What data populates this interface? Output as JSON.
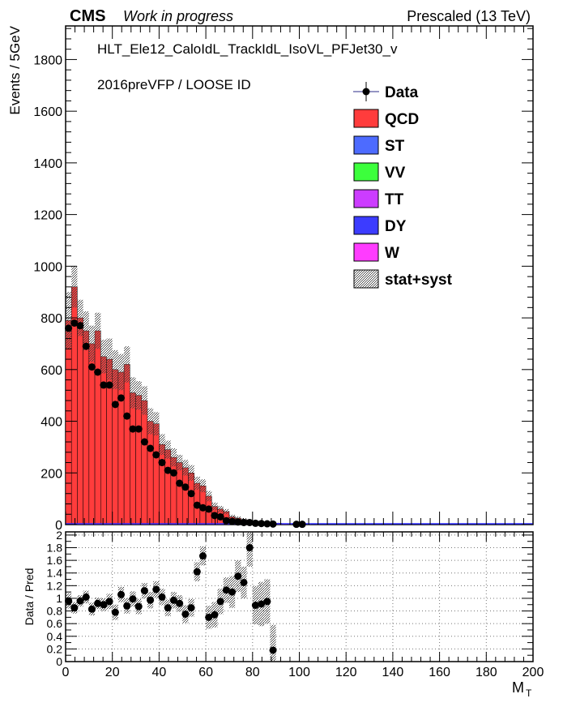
{
  "header": {
    "experiment": "CMS",
    "status": "Work in progress",
    "energy": "Prescaled (13 TeV)"
  },
  "annotations": {
    "trigger": "HLT_Ele12_CaloIdL_TrackIdL_IsoVL_PFJet30_v",
    "selection": "2016preVFP / LOOSE ID"
  },
  "legend": [
    {
      "label": "Data",
      "kind": "marker",
      "color": "#000000"
    },
    {
      "label": "QCD",
      "kind": "box",
      "color": "#ff3c3c"
    },
    {
      "label": "ST",
      "kind": "box",
      "color": "#4d6bff"
    },
    {
      "label": "VV",
      "kind": "box",
      "color": "#3cff3c"
    },
    {
      "label": "TT",
      "kind": "box",
      "color": "#cc3cff"
    },
    {
      "label": "DY",
      "kind": "box",
      "color": "#3c3cff"
    },
    {
      "label": "W",
      "kind": "box",
      "color": "#ff3cff"
    },
    {
      "label": "stat+syst",
      "kind": "hatch",
      "color": "#555555"
    }
  ],
  "chart_data": [
    {
      "type": "bar",
      "panel": "main",
      "ylabel": "Events / 5GeV",
      "xlim": [
        0,
        200
      ],
      "ylim": [
        0,
        1930
      ],
      "yticks": [
        0,
        200,
        400,
        600,
        800,
        1000,
        1200,
        1400,
        1600,
        1800
      ],
      "bin_width": 2.5,
      "bin_edges_start": 0,
      "series": [
        {
          "name": "QCD",
          "color": "#ff3c3c",
          "values": [
            790,
            920,
            800,
            750,
            700,
            750,
            650,
            640,
            600,
            590,
            620,
            510,
            500,
            480,
            400,
            390,
            310,
            290,
            260,
            240,
            220,
            200,
            160,
            150,
            110,
            70,
            60,
            50,
            30,
            25,
            20,
            15,
            12,
            10,
            8,
            6,
            5,
            3,
            2,
            1,
            1,
            1
          ]
        }
      ],
      "uncertainty": [
        110,
        80,
        70,
        75,
        70,
        70,
        65,
        80,
        75,
        70,
        70,
        60,
        55,
        55,
        50,
        45,
        40,
        35,
        35,
        30,
        30,
        30,
        25,
        25,
        20,
        15,
        12,
        10,
        8,
        6,
        5,
        4,
        3,
        3,
        2,
        2,
        2,
        1,
        1,
        1,
        1,
        1
      ],
      "data": {
        "name": "Data",
        "x": [
          1.25,
          3.75,
          6.25,
          8.75,
          11.25,
          13.75,
          16.25,
          18.75,
          21.25,
          23.75,
          26.25,
          28.75,
          31.25,
          33.75,
          36.25,
          38.75,
          41.25,
          43.75,
          46.25,
          48.75,
          51.25,
          53.75,
          56.25,
          58.75,
          61.25,
          63.75,
          66.25,
          68.75,
          71.25,
          73.75,
          76.25,
          78.75,
          81.25,
          83.75,
          86.25,
          88.75,
          98.75,
          101.25
        ],
        "y": [
          760,
          780,
          770,
          690,
          610,
          590,
          540,
          540,
          465,
          490,
          420,
          370,
          370,
          320,
          295,
          270,
          240,
          210,
          200,
          160,
          145,
          120,
          75,
          65,
          60,
          35,
          30,
          15,
          12,
          10,
          8,
          8,
          5,
          4,
          3,
          2,
          1,
          1
        ]
      }
    },
    {
      "type": "scatter",
      "panel": "ratio",
      "ylabel": "Data / Pred",
      "xlabel": "M",
      "xlabel_sub": "T",
      "xlim": [
        0,
        200
      ],
      "ylim": [
        0,
        2.05
      ],
      "yticks": [
        0,
        0.2,
        0.4,
        0.6,
        0.8,
        1,
        1.2,
        1.4,
        1.6,
        1.8,
        2
      ],
      "xticks": [
        0,
        20,
        40,
        60,
        80,
        100,
        120,
        140,
        160,
        180,
        200
      ],
      "uncertainty": [
        0.12,
        0.09,
        0.09,
        0.1,
        0.1,
        0.09,
        0.1,
        0.12,
        0.12,
        0.12,
        0.12,
        0.12,
        0.12,
        0.12,
        0.13,
        0.13,
        0.13,
        0.13,
        0.13,
        0.13,
        0.14,
        0.14,
        0.15,
        0.15,
        0.18,
        0.2,
        0.2,
        0.2,
        0.25,
        0.25,
        0.25,
        0.3,
        0.3,
        0.35,
        0.35,
        0.4
      ],
      "points": {
        "x": [
          1.25,
          3.75,
          6.25,
          8.75,
          11.25,
          13.75,
          16.25,
          18.75,
          21.25,
          23.75,
          26.25,
          28.75,
          31.25,
          33.75,
          36.25,
          38.75,
          41.25,
          43.75,
          46.25,
          48.75,
          51.25,
          53.75,
          56.25,
          58.75,
          61.25,
          63.75,
          66.25,
          68.75,
          71.25,
          73.75,
          76.25,
          78.75,
          81.25,
          83.75,
          86.25,
          88.75
        ],
        "y": [
          0.96,
          0.85,
          0.96,
          1.02,
          0.83,
          0.92,
          0.9,
          0.95,
          0.78,
          1.06,
          0.88,
          0.99,
          0.87,
          1.12,
          0.97,
          1.14,
          1.02,
          0.85,
          0.97,
          0.92,
          0.75,
          0.85,
          1.42,
          1.67,
          0.7,
          0.74,
          0.95,
          1.13,
          1.1,
          1.35,
          1.25,
          1.8,
          0.89,
          0.91,
          0.95,
          0.18
        ]
      }
    }
  ]
}
